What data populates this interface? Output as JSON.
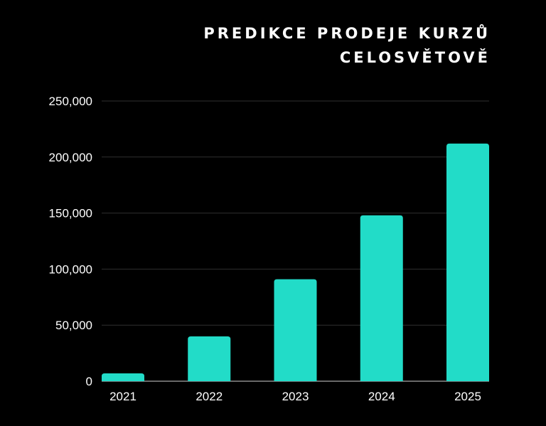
{
  "chart_data": {
    "type": "bar",
    "title_lines": [
      "PREDIKCE PRODEJE KURZŮ",
      "CELOSVĚTOVĚ"
    ],
    "categories": [
      "2021",
      "2022",
      "2023",
      "2024",
      "2025"
    ],
    "values": [
      7000,
      40000,
      91000,
      148000,
      212000
    ],
    "ylim": [
      0,
      250000
    ],
    "yticks": [
      0,
      50000,
      100000,
      150000,
      200000,
      250000
    ],
    "ytick_labels": [
      "0",
      "50,000",
      "100,000",
      "150,000",
      "200,000",
      "250,000"
    ],
    "xlabel": "",
    "ylabel": "",
    "grid": true,
    "bar_color": "#22dcc8",
    "grid_color": "#2f2f2f",
    "background_color": "#000000"
  }
}
